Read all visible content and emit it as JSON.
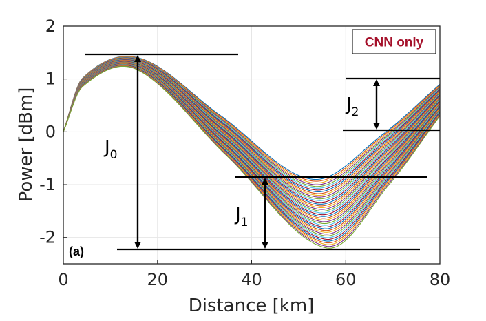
{
  "chart_data": {
    "type": "line",
    "title": "",
    "xlabel": "Distance [km]",
    "ylabel": "Power [dBm]",
    "xlim": [
      0,
      80
    ],
    "ylim": [
      -2.5,
      2
    ],
    "xticks": [
      "0",
      "20",
      "40",
      "60",
      "80"
    ],
    "yticks": [
      "2",
      "1",
      "0",
      "-1",
      "-2"
    ],
    "grid": true,
    "series_count": 40,
    "series_description": "Family of 40 launch-power traces starting at 0 dBm; peak ≈1.2–1.4 dBm near 16 km, minimum ≈ -0.9 to -2.2 dBm near 53–56 km, ending ≈0.3–0.9 dBm at 80 km",
    "series_envelope": {
      "start": 0,
      "peak_km": 16,
      "peak_range": [
        1.18,
        1.4
      ],
      "min_km": [
        53,
        56
      ],
      "min_range": [
        -2.2,
        -0.9
      ],
      "end_km": 80,
      "end_range": [
        0.3,
        0.9
      ]
    },
    "badge": "CNN only",
    "panel_label": "(a)",
    "annotations": [
      {
        "label": "J",
        "sub": "0",
        "from_y": 1.42,
        "to_y": -2.22,
        "x_km": 16
      },
      {
        "label": "J",
        "sub": "1",
        "from_y": -0.88,
        "to_y": -2.22,
        "x_km": 43
      },
      {
        "label": "J",
        "sub": "2",
        "from_y": 1.0,
        "to_y": 0.0,
        "x_km": 67
      }
    ]
  },
  "colors": {
    "palette": [
      "#0072bd",
      "#d95319",
      "#edb120",
      "#7e2f8e",
      "#77ac30",
      "#4dbeee",
      "#a2142f"
    ],
    "badge_text": "#a5102a",
    "axis": "#262626",
    "grid": "#e6e6e6"
  }
}
